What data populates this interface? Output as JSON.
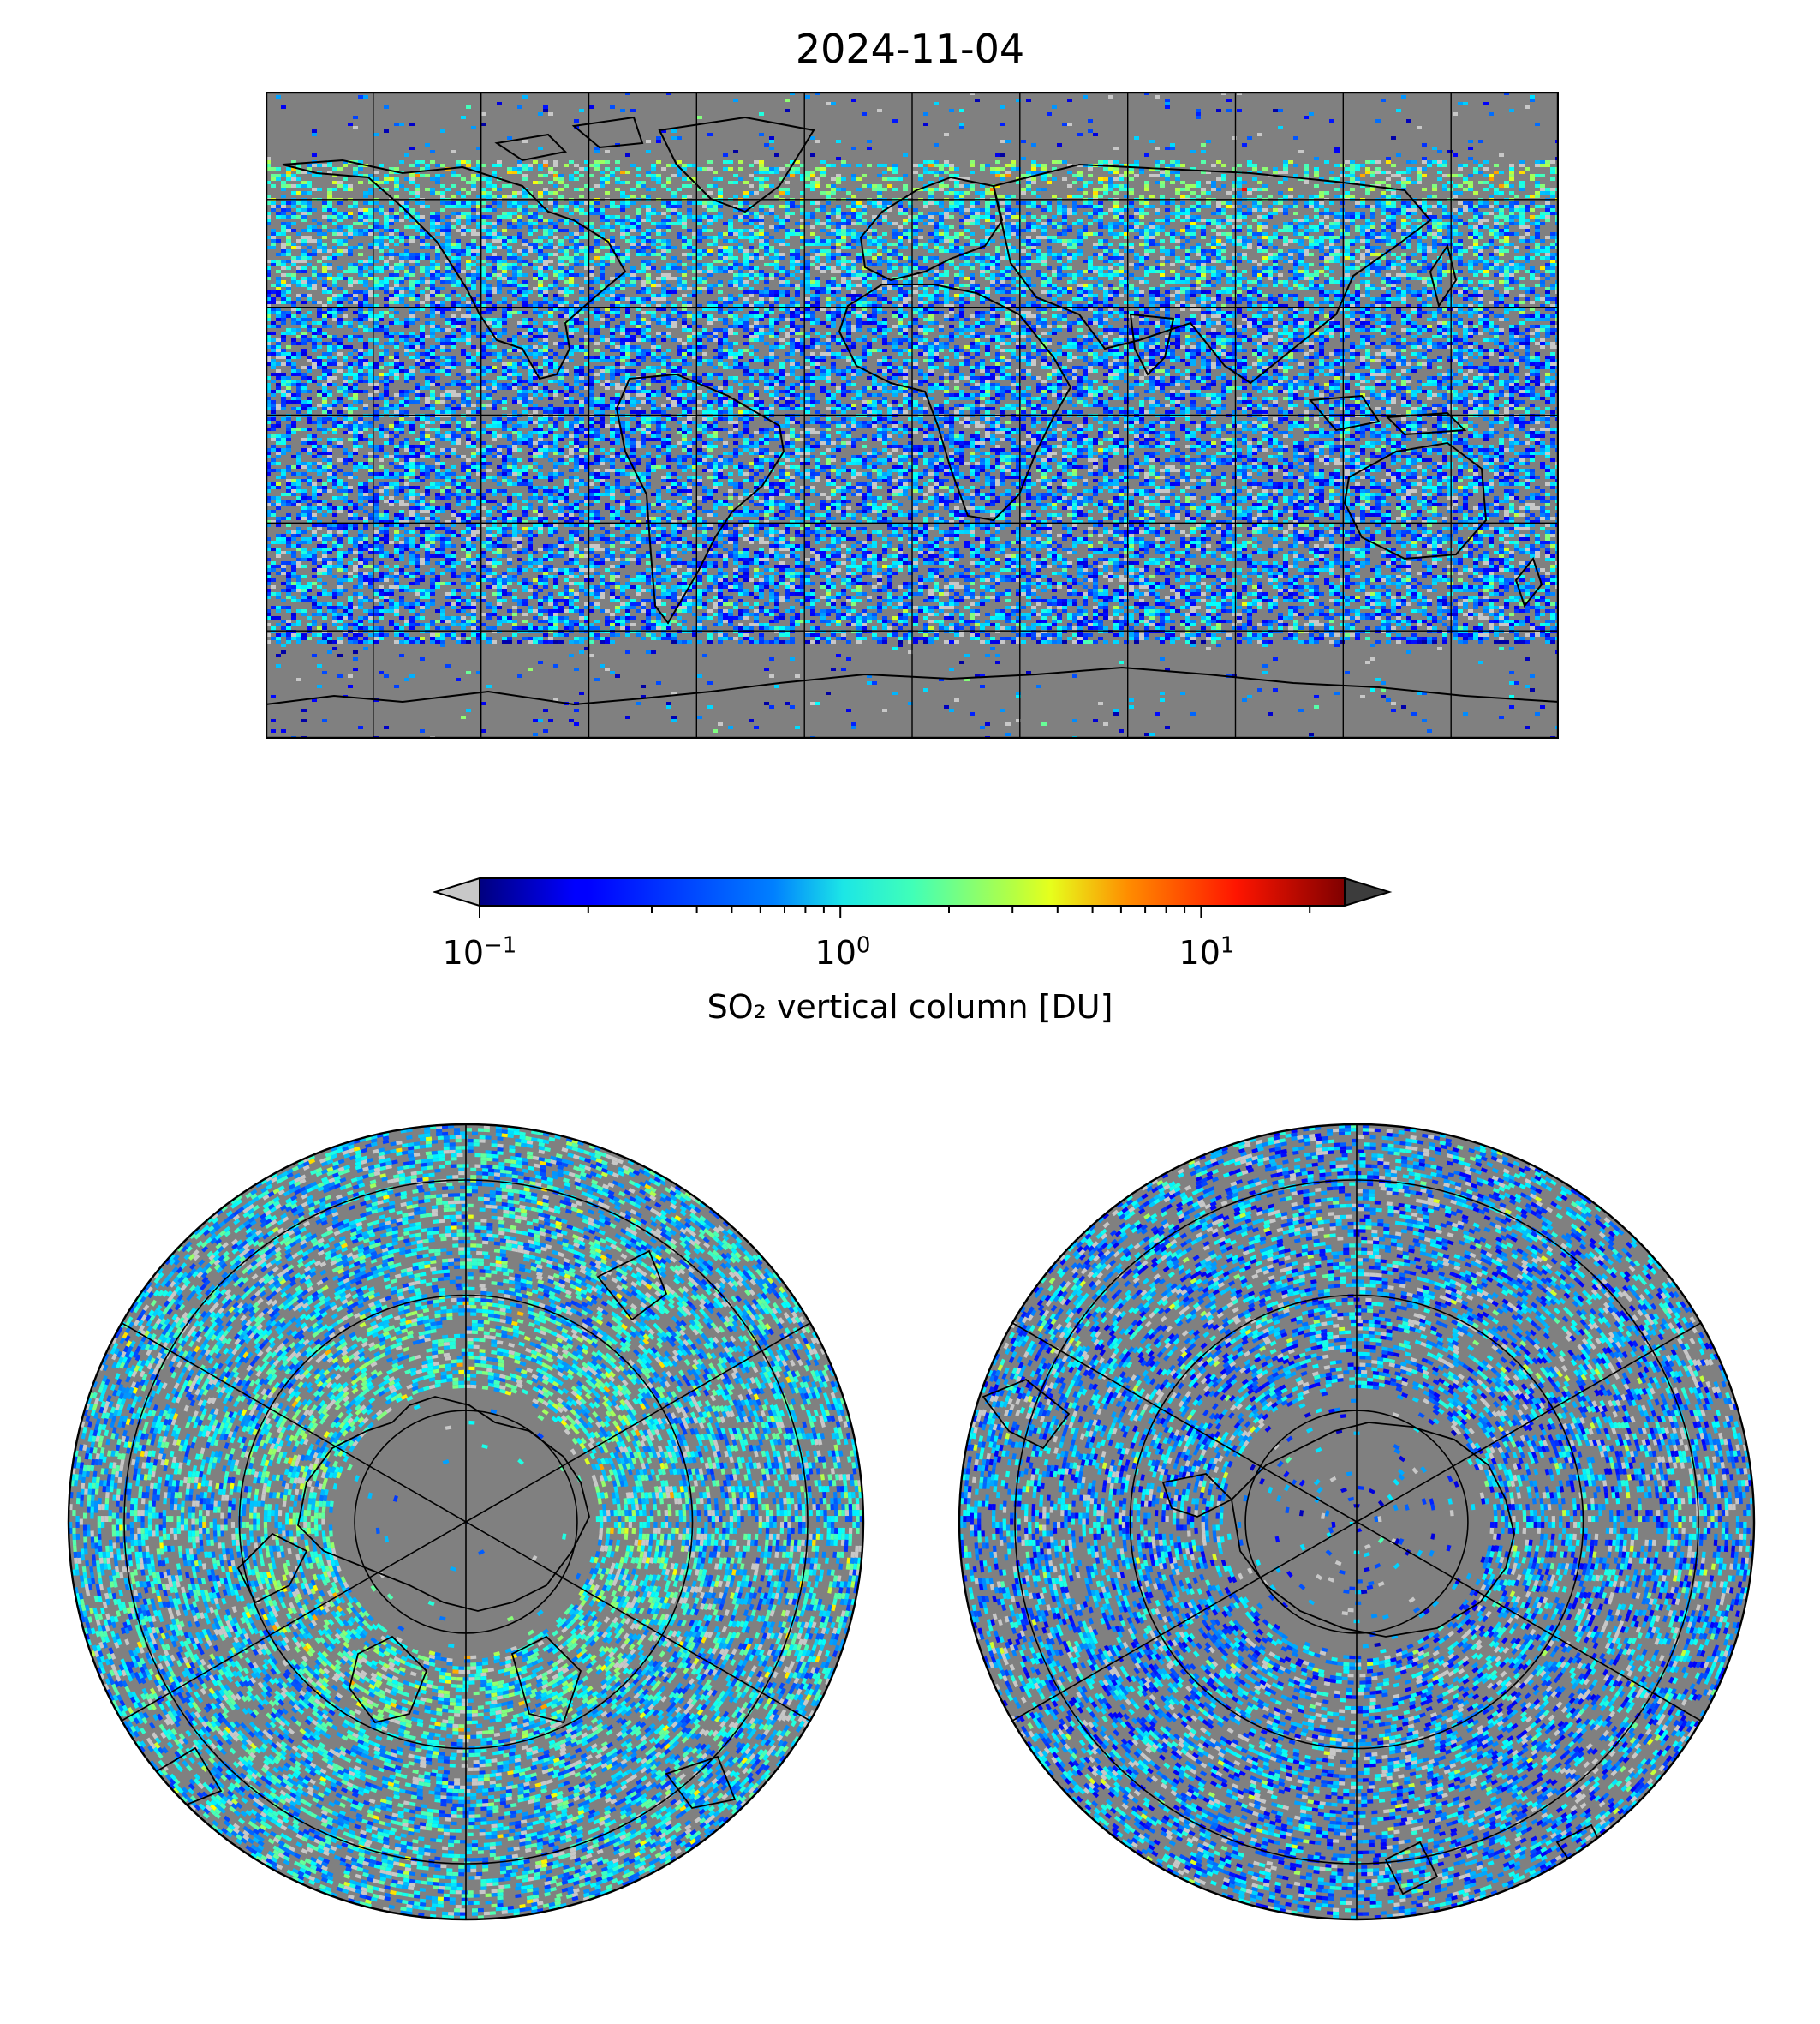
{
  "title": "2024-11-04",
  "colorbar": {
    "label": "SO₂ vertical column [DU]",
    "scale": "log",
    "min": 0.1,
    "max": 25,
    "colormap": "jet",
    "extend": "both",
    "under_color": "#c8c8c8",
    "over_color": "#3c3c3c",
    "ticks": [
      {
        "base": "10",
        "exp": "−1",
        "value": 0.1
      },
      {
        "base": "10",
        "exp": "0",
        "value": 1
      },
      {
        "base": "10",
        "exp": "1",
        "value": 10
      }
    ]
  },
  "maps": {
    "world": {
      "projection": "plate carree",
      "background": "#808080",
      "gridlines": true
    },
    "north_polar": {
      "projection": "north polar stereographic",
      "background": "#808080",
      "gridlines": true
    },
    "south_polar": {
      "projection": "south polar stereographic",
      "background": "#808080",
      "gridlines": true
    }
  }
}
